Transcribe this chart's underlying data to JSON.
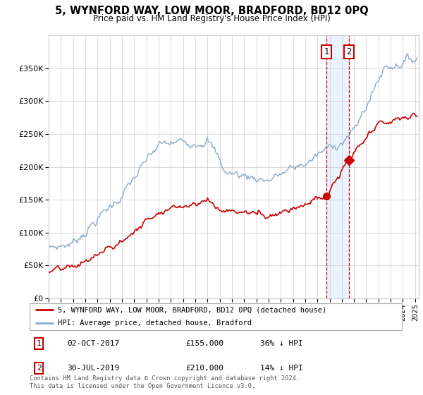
{
  "title": "5, WYNFORD WAY, LOW MOOR, BRADFORD, BD12 0PQ",
  "subtitle": "Price paid vs. HM Land Registry's House Price Index (HPI)",
  "legend_line1": "5, WYNFORD WAY, LOW MOOR, BRADFORD, BD12 0PQ (detached house)",
  "legend_line2": "HPI: Average price, detached house, Bradford",
  "annotation1_label": "1",
  "annotation1_date": "02-OCT-2017",
  "annotation1_price": "£155,000",
  "annotation1_hpi": "36% ↓ HPI",
  "annotation2_label": "2",
  "annotation2_date": "30-JUL-2019",
  "annotation2_price": "£210,000",
  "annotation2_hpi": "14% ↓ HPI",
  "footer": "Contains HM Land Registry data © Crown copyright and database right 2024.\nThis data is licensed under the Open Government Licence v3.0.",
  "property_color": "#cc0000",
  "hpi_color": "#88aacc",
  "ylim": [
    0,
    400000
  ],
  "yticks": [
    0,
    50000,
    100000,
    150000,
    200000,
    250000,
    300000,
    350000
  ],
  "sale1_year": 2017.75,
  "sale1_price": 155000,
  "sale2_year": 2019.58,
  "sale2_price": 210000,
  "annotation_box_color": "#cc0000",
  "shaded_region_color": "#ddeeff",
  "shaded_region_alpha": 0.6,
  "xmin": 1995,
  "xmax": 2025.3
}
